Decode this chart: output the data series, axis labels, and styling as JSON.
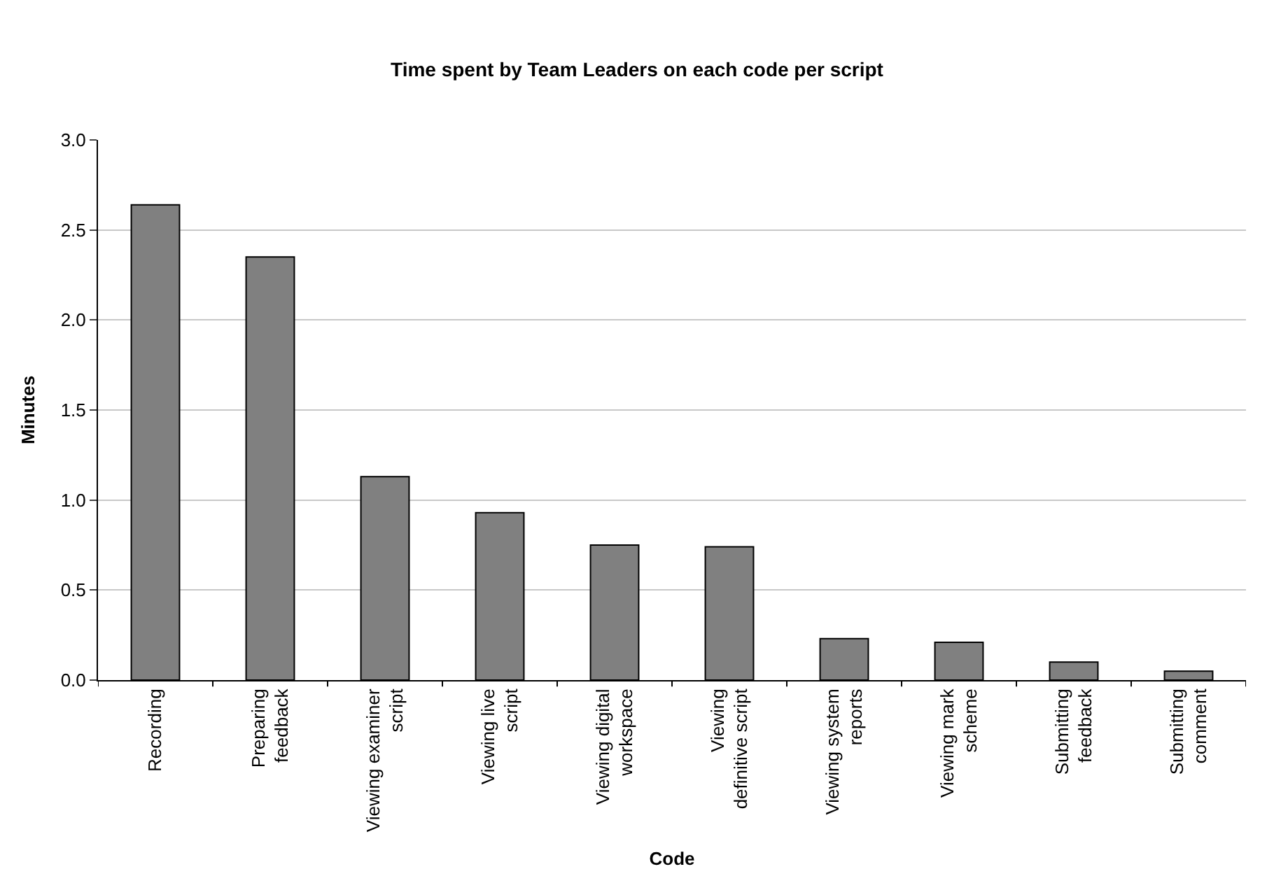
{
  "chart_data": {
    "type": "bar",
    "title": "Time spent by Team Leaders on each code per script",
    "xlabel": "Code",
    "ylabel": "Minutes",
    "categories": [
      "Recording",
      "Preparing feedback",
      "Viewing examiner script",
      "Viewing live script",
      "Viewing digital workspace",
      "Viewing definitive script",
      "Viewing system reports",
      "Viewing mark scheme",
      "Submitting feedback",
      "Submitting comment"
    ],
    "values": [
      2.64,
      2.35,
      1.13,
      0.93,
      0.75,
      0.74,
      0.23,
      0.21,
      0.1,
      0.05
    ],
    "color": "#808080",
    "ylim": [
      0,
      3
    ],
    "yticks": [
      {
        "value": 0,
        "label": "0.0"
      },
      {
        "value": 0.5,
        "label": "0.5"
      },
      {
        "value": 1,
        "label": "1.0"
      },
      {
        "value": 1.5,
        "label": "1.5"
      },
      {
        "value": 2,
        "label": "2.0"
      },
      {
        "value": 2.5,
        "label": "2.5"
      },
      {
        "value": 3,
        "label": "3.0"
      }
    ],
    "grid": "y",
    "legend": false
  }
}
